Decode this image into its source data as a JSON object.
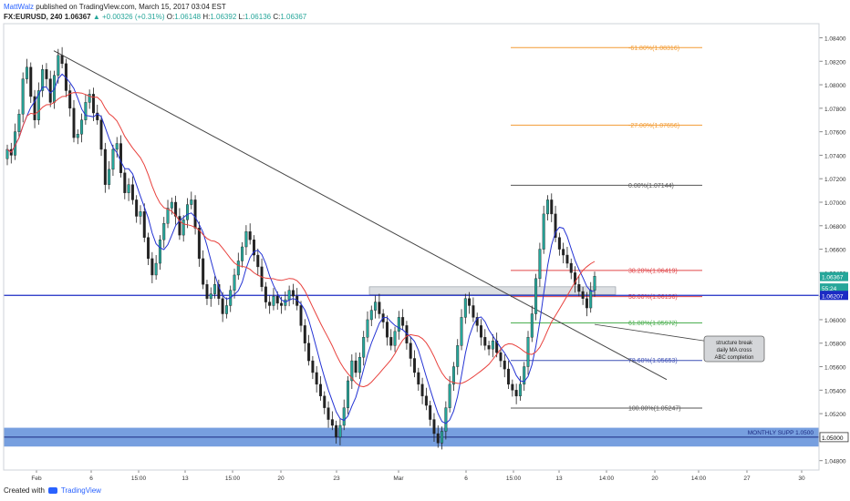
{
  "header": {
    "author": "MattWalz",
    "published": "published on TradingView.com, March 15, 2017 03:04 EST",
    "symbol": "FX:EURUSD, 240",
    "last": "1.06367",
    "change": "▲ +0.00326 (+0.31%)",
    "ohlc": [
      {
        "k": "O:",
        "v": "1.06148"
      },
      {
        "k": "H:",
        "v": "1.06392"
      },
      {
        "k": "L:",
        "v": "1.06136"
      },
      {
        "k": "C:",
        "v": "1.06367"
      }
    ]
  },
  "footer": {
    "created": "Created with",
    "brand": "TradingView"
  },
  "colors": {
    "up": "#26a69a",
    "down": "#222222",
    "ma_fast": "#2433d4",
    "ma_slow": "#e8403c",
    "level": "#1c2bc4",
    "fib_ext": "#f39c34",
    "fib_red": "#e0474a",
    "fib_green": "#4caf50",
    "fib_blue": "#3f51b5",
    "zone": "#4a7fd4"
  },
  "chart_data": {
    "type": "candlestick",
    "x_ticks": [
      "Feb",
      "6",
      "15:00",
      "13",
      "15:00",
      "20",
      "23",
      "Mar",
      "6",
      "15:00",
      "13",
      "14:00",
      "20",
      "14:00",
      "27",
      "30"
    ],
    "y_ticks": [
      "1.08400",
      "1.08200",
      "1.08000",
      "1.07800",
      "1.07600",
      "1.07400",
      "1.07200",
      "1.07000",
      "1.06800",
      "1.06600",
      "1.06400",
      "1.06200",
      "1.06000",
      "1.05800",
      "1.05600",
      "1.05400",
      "1.05200",
      "1.05000",
      "1.04800"
    ],
    "y_range": [
      1.0472,
      1.0852
    ],
    "price_labels": [
      {
        "text": "1.06367",
        "value": 1.06367,
        "kind": "last"
      },
      {
        "text": "55:24",
        "value": 1.0627,
        "kind": "timer"
      },
      {
        "text": "1.06207",
        "value": 1.06207,
        "kind": "level"
      },
      {
        "text": "1.05000",
        "value": 1.05,
        "kind": "zone"
      }
    ],
    "horizontal_level": {
      "value": 1.06207
    },
    "support_zone": {
      "label": "MONTHLY SUPP 1.0500",
      "from": 1.0492,
      "to": 1.0508,
      "value": 1.05
    },
    "resistance_box": {
      "from": 1.06215,
      "to": 1.0628
    },
    "fib_levels": [
      {
        "label": "-61.80%(1.08316)",
        "value": 1.08316,
        "color": "#f39c34"
      },
      {
        "label": "-27.00%(1.07656)",
        "value": 1.07656,
        "color": "#f39c34"
      },
      {
        "label": "0.00%(1.07144)",
        "value": 1.07144,
        "color": "#555555"
      },
      {
        "label": "38.20%(1.06419)",
        "value": 1.06419,
        "color": "#e0474a"
      },
      {
        "label": "50.00%(1.06196)",
        "value": 1.06196,
        "color": "#e0474a"
      },
      {
        "label": "61.80%(1.05972)",
        "value": 1.05972,
        "color": "#4caf50"
      },
      {
        "label": "78.60%(1.05653)",
        "value": 1.05653,
        "color": "#3f51b5"
      },
      {
        "label": "100.00%(1.05247)",
        "value": 1.05247,
        "color": "#555555"
      }
    ],
    "annotation": {
      "lines": [
        "structure break",
        "daily MA cross",
        "ABC completion"
      ]
    },
    "trendline": {
      "from_price": 1.0829,
      "to_price": 1.0549
    },
    "closes": [
      1.0745,
      1.074,
      1.076,
      1.0775,
      1.0805,
      1.0815,
      1.079,
      1.077,
      1.0795,
      1.0813,
      1.0805,
      1.0785,
      1.0808,
      1.0825,
      1.0818,
      1.0795,
      1.078,
      1.0755,
      1.0758,
      1.077,
      1.0785,
      1.0792,
      1.0776,
      1.077,
      1.0745,
      1.0715,
      1.0728,
      1.0745,
      1.075,
      1.0725,
      1.0708,
      1.0715,
      1.0702,
      1.0688,
      1.0692,
      1.067,
      1.0652,
      1.0638,
      1.0648,
      1.0668,
      1.0682,
      1.0695,
      1.07,
      1.0688,
      1.0672,
      1.0685,
      1.0698,
      1.0702,
      1.0678,
      1.0652,
      1.063,
      1.0618,
      1.0622,
      1.063,
      1.0618,
      1.0605,
      1.0612,
      1.0625,
      1.0638,
      1.065,
      1.0662,
      1.0675,
      1.0668,
      1.0655,
      1.0645,
      1.0628,
      1.0615,
      1.0612,
      1.062,
      1.0614,
      1.0612,
      1.0617,
      1.0625,
      1.062,
      1.0612,
      1.0595,
      1.058,
      1.0565,
      1.0555,
      1.0545,
      1.0535,
      1.0525,
      1.0515,
      1.051,
      1.05,
      1.051,
      1.0525,
      1.0548,
      1.0565,
      1.0555,
      1.0568,
      1.0585,
      1.06,
      1.0608,
      1.0615,
      1.0605,
      1.0598,
      1.0585,
      1.0578,
      1.059,
      1.0602,
      1.0595,
      1.058,
      1.0567,
      1.0555,
      1.0545,
      1.0535,
      1.0527,
      1.0515,
      1.0503,
      1.0495,
      1.0505,
      1.0525,
      1.0545,
      1.056,
      1.0578,
      1.0602,
      1.0618,
      1.0612,
      1.0602,
      1.0595,
      1.0585,
      1.0578,
      1.0575,
      1.0582,
      1.0572,
      1.0565,
      1.0558,
      1.0545,
      1.054,
      1.0535,
      1.0545,
      1.056,
      1.0585,
      1.0605,
      1.0635,
      1.066,
      1.069,
      1.0702,
      1.069,
      1.067,
      1.066,
      1.0655,
      1.0648,
      1.064,
      1.063,
      1.0624,
      1.0618,
      1.061,
      1.0625,
      1.0637
    ]
  }
}
